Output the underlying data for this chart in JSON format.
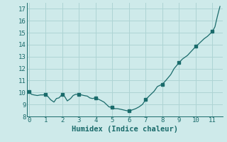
{
  "x": [
    0.0,
    0.15,
    0.3,
    0.5,
    0.7,
    0.85,
    1.0,
    1.15,
    1.3,
    1.5,
    1.65,
    1.8,
    2.0,
    2.15,
    2.3,
    2.5,
    2.65,
    2.8,
    3.0,
    3.15,
    3.3,
    3.5,
    3.65,
    3.8,
    4.0,
    4.15,
    4.3,
    4.5,
    4.65,
    4.8,
    5.0,
    5.15,
    5.3,
    5.5,
    5.65,
    5.8,
    6.0,
    6.2,
    6.4,
    6.6,
    6.8,
    7.0,
    7.2,
    7.5,
    7.7,
    8.0,
    8.2,
    8.5,
    8.7,
    9.0,
    9.2,
    9.5,
    9.7,
    10.0,
    10.2,
    10.5,
    10.7,
    11.0,
    11.15,
    11.3,
    11.45
  ],
  "y": [
    10.1,
    9.85,
    9.8,
    9.75,
    9.8,
    9.8,
    9.85,
    9.65,
    9.4,
    9.2,
    9.5,
    9.55,
    9.85,
    9.65,
    9.3,
    9.5,
    9.75,
    9.85,
    9.85,
    9.8,
    9.75,
    9.7,
    9.55,
    9.5,
    9.55,
    9.45,
    9.35,
    9.2,
    9.0,
    8.8,
    8.75,
    8.65,
    8.65,
    8.6,
    8.55,
    8.5,
    8.45,
    8.55,
    8.65,
    8.8,
    9.0,
    9.4,
    9.7,
    10.1,
    10.5,
    10.7,
    11.0,
    11.5,
    12.0,
    12.5,
    12.8,
    13.1,
    13.4,
    13.85,
    14.1,
    14.5,
    14.7,
    15.1,
    15.5,
    16.4,
    17.2
  ],
  "markers_x": [
    0.0,
    1.0,
    2.0,
    3.0,
    4.0,
    5.0,
    6.0,
    7.0,
    8.0,
    9.0,
    10.0,
    11.0
  ],
  "markers_y": [
    10.1,
    9.85,
    9.85,
    9.85,
    9.55,
    8.75,
    8.45,
    9.4,
    10.7,
    12.5,
    13.85,
    15.1
  ],
  "line_color": "#1a6b6b",
  "marker_color": "#1a6b6b",
  "bg_color": "#ceeaea",
  "grid_color": "#aed4d4",
  "axis_color": "#1a6b6b",
  "xlabel": "Humidex (Indice chaleur)",
  "xlim": [
    -0.1,
    11.6
  ],
  "ylim": [
    8.0,
    17.5
  ],
  "xticks": [
    0,
    1,
    2,
    3,
    4,
    5,
    6,
    7,
    8,
    9,
    10,
    11
  ],
  "yticks": [
    8,
    9,
    10,
    11,
    12,
    13,
    14,
    15,
    16,
    17
  ],
  "xlabel_fontsize": 7.5,
  "tick_fontsize": 6.5
}
